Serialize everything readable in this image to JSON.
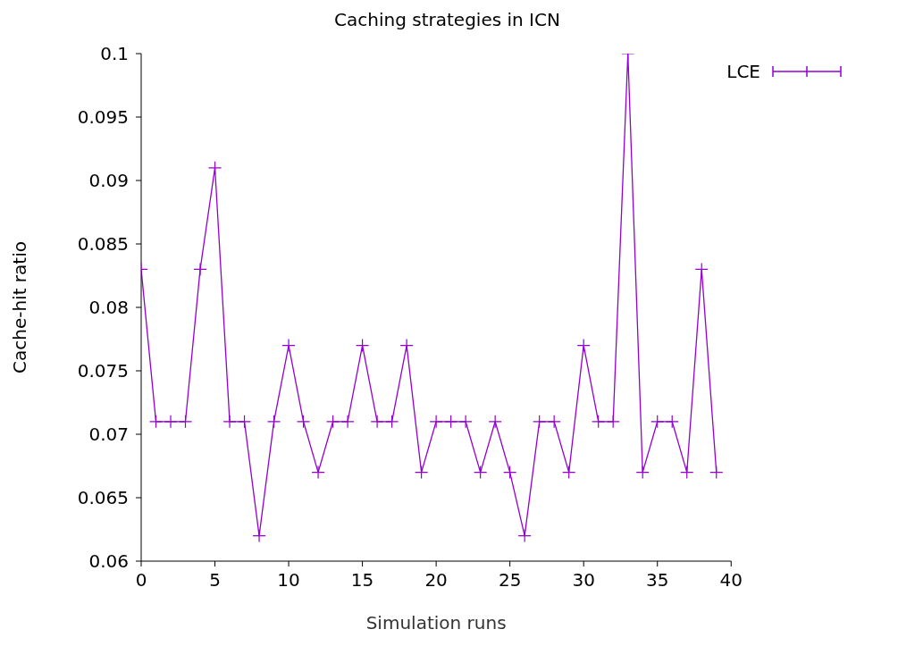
{
  "chart_data": {
    "type": "line",
    "title": "Caching strategies in ICN",
    "xlabel": "Simulation runs",
    "ylabel": "Cache-hit ratio",
    "x": [
      0,
      1,
      2,
      3,
      4,
      5,
      6,
      7,
      8,
      9,
      10,
      11,
      12,
      13,
      14,
      15,
      16,
      17,
      18,
      19,
      20,
      21,
      22,
      23,
      24,
      25,
      26,
      27,
      28,
      29,
      30,
      31,
      32,
      33,
      34,
      35,
      36,
      37,
      38,
      39
    ],
    "series": [
      {
        "name": "LCE",
        "color": "#9400d3",
        "values": [
          0.083,
          0.071,
          0.071,
          0.071,
          0.083,
          0.091,
          0.071,
          0.071,
          0.062,
          0.071,
          0.077,
          0.071,
          0.067,
          0.071,
          0.071,
          0.077,
          0.071,
          0.071,
          0.077,
          0.067,
          0.071,
          0.071,
          0.071,
          0.067,
          0.071,
          0.067,
          0.062,
          0.071,
          0.071,
          0.067,
          0.077,
          0.071,
          0.071,
          0.1,
          0.067,
          0.071,
          0.071,
          0.067,
          0.083,
          0.067
        ]
      }
    ],
    "xlim": [
      0,
      40
    ],
    "xticks": [
      0,
      5,
      10,
      15,
      20,
      25,
      30,
      35,
      40
    ],
    "ylim": [
      0.06,
      0.1
    ],
    "yticks": [
      0.06,
      0.065,
      0.07,
      0.075,
      0.08,
      0.085,
      0.09,
      0.095,
      0.1
    ],
    "legend": "top right",
    "marker": "cross",
    "line_style": "solid",
    "grid": false
  }
}
